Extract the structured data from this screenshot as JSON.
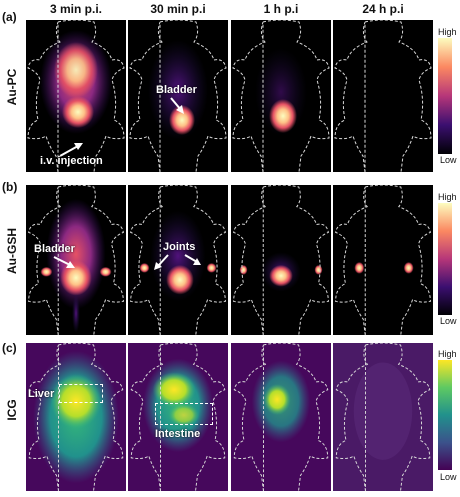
{
  "columns": [
    "3 min p.i.",
    "30 min p.i",
    "1 h p.i",
    "24 h p.i"
  ],
  "rows": [
    {
      "panel": "(a)",
      "agent": "Au-PC"
    },
    {
      "panel": "(b)",
      "agent": "Au-GSH"
    },
    {
      "panel": "(c)",
      "agent": "ICG"
    }
  ],
  "annotations": {
    "bladder_a": "Bladder",
    "injection": "i.v. injection",
    "bladder_b": "Bladder",
    "joints": "Joints",
    "liver": "Liver",
    "intestine": "Intestine"
  },
  "colorbar": {
    "high": "High",
    "low": "Low"
  },
  "colors": {
    "magma_low": "#000004",
    "magma_mid": "#b63679",
    "magma_high": "#fcfdbf",
    "viridis_low": "#440154",
    "viridis_mid": "#21918c",
    "viridis_high": "#fde725"
  }
}
